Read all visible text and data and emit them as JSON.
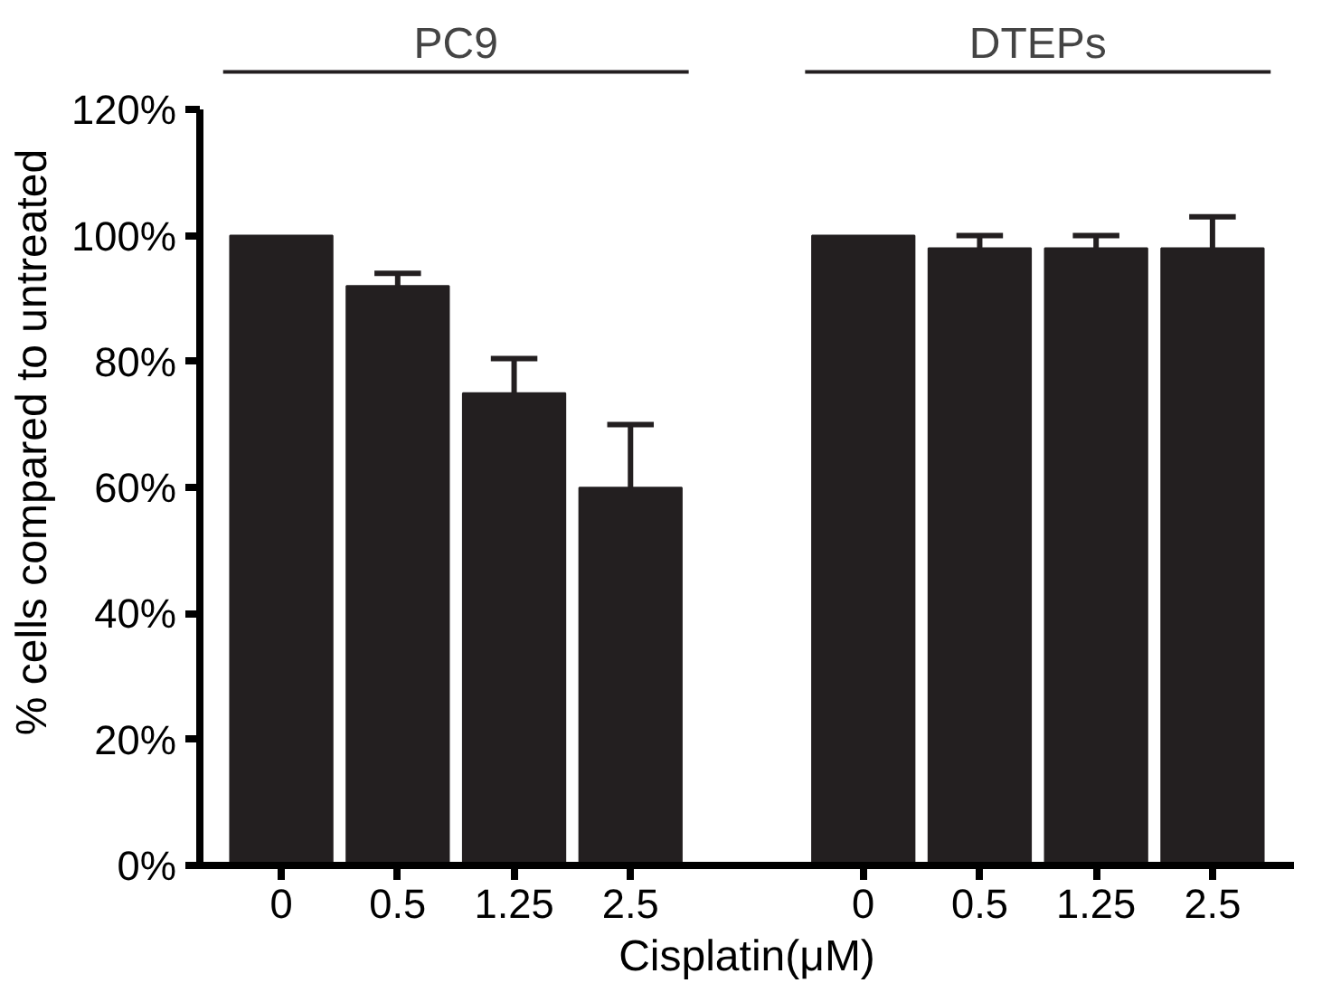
{
  "chart_data": {
    "type": "bar",
    "xlabel": "Cisplatin(μM)",
    "ylabel": "% cells compared to untreated",
    "categories": [
      "0",
      "0.5",
      "1.25",
      "2.5",
      "0",
      "0.5",
      "1.25",
      "2.5"
    ],
    "values": [
      100,
      92,
      75,
      60,
      100,
      98,
      98,
      98
    ],
    "errors": [
      null,
      2,
      5.5,
      10,
      null,
      2,
      2,
      5
    ],
    "color": "#231f20",
    "ylim": [
      0,
      120
    ],
    "yticks": [
      {
        "value": 0,
        "label": "0%"
      },
      {
        "value": 20,
        "label": "20%"
      },
      {
        "value": 40,
        "label": "40%"
      },
      {
        "value": 60,
        "label": "60%"
      },
      {
        "value": 80,
        "label": "80%"
      },
      {
        "value": 100,
        "label": "100%"
      },
      {
        "value": 120,
        "label": "120%"
      }
    ],
    "annotations": [
      "PC9",
      "DTEPs"
    ],
    "grid": false
  }
}
